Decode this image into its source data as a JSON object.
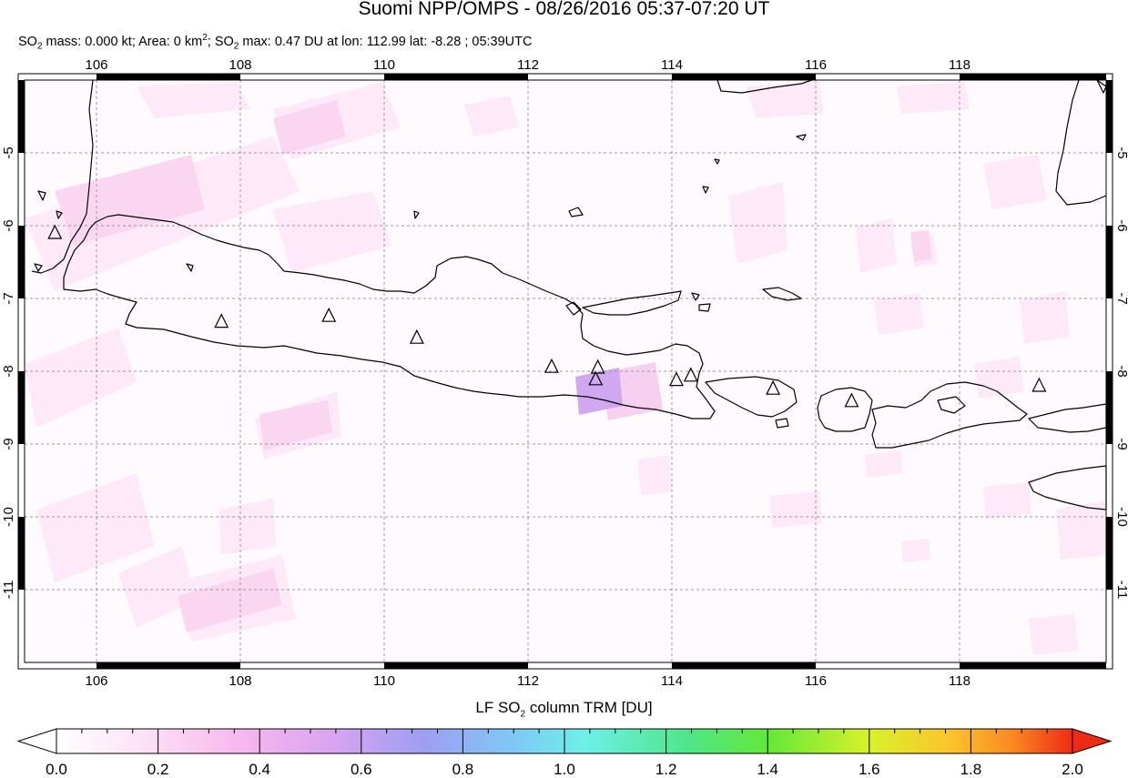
{
  "header": {
    "title": "Suomi NPP/OMPS - 08/26/2016 05:37-07:20 UT",
    "stats_a": "SO",
    "stats_b": "2",
    "stats_c": " mass: 0.000 kt; Area: 0 km",
    "stats_d": "2",
    "stats_e": "; SO",
    "stats_f": "2",
    "stats_g": " max: 0.47 DU at lon: 112.99 lat: -8.28 ; 05:39UTC"
  },
  "map": {
    "lon_labels": [
      "106",
      "108",
      "110",
      "112",
      "114",
      "116",
      "118"
    ],
    "lat_labels": [
      "-5",
      "-6",
      "-7",
      "-8",
      "-9",
      "-10",
      "-11"
    ],
    "lon_range": [
      105,
      120
    ],
    "lat_range": [
      -4,
      -12
    ],
    "volcano_icon": "triangle-outline",
    "volcanoes": [
      {
        "lon": 105.42,
        "lat": -6.1
      },
      {
        "lon": 107.73,
        "lat": -7.32
      },
      {
        "lon": 109.22,
        "lat": -7.24
      },
      {
        "lon": 110.44,
        "lat": -7.54
      },
      {
        "lon": 112.31,
        "lat": -7.94
      },
      {
        "lon": 112.95,
        "lat": -7.95
      },
      {
        "lon": 112.92,
        "lat": -8.11
      },
      {
        "lon": 114.04,
        "lat": -8.12
      },
      {
        "lon": 114.24,
        "lat": -8.06
      },
      {
        "lon": 115.38,
        "lat": -8.24
      },
      {
        "lon": 116.47,
        "lat": -8.41
      },
      {
        "lon": 119.07,
        "lat": -8.2
      }
    ]
  },
  "colorbar": {
    "title_a": "LF SO",
    "title_b": "2",
    "title_c": " column TRM [DU]",
    "tick_labels": [
      "0.0",
      "0.2",
      "0.4",
      "0.6",
      "0.8",
      "1.0",
      "1.2",
      "1.4",
      "1.6",
      "1.8",
      "2.0"
    ],
    "range": [
      0,
      2
    ],
    "colors": [
      "#ffffff",
      "#fde4f6",
      "#f7b8ee",
      "#d9a4f0",
      "#9f9ef2",
      "#7fc8f6",
      "#6ef0e8",
      "#4fe68a",
      "#62e838",
      "#d8f22a",
      "#fbc42c",
      "#f98a22",
      "#ee2b14"
    ]
  }
}
